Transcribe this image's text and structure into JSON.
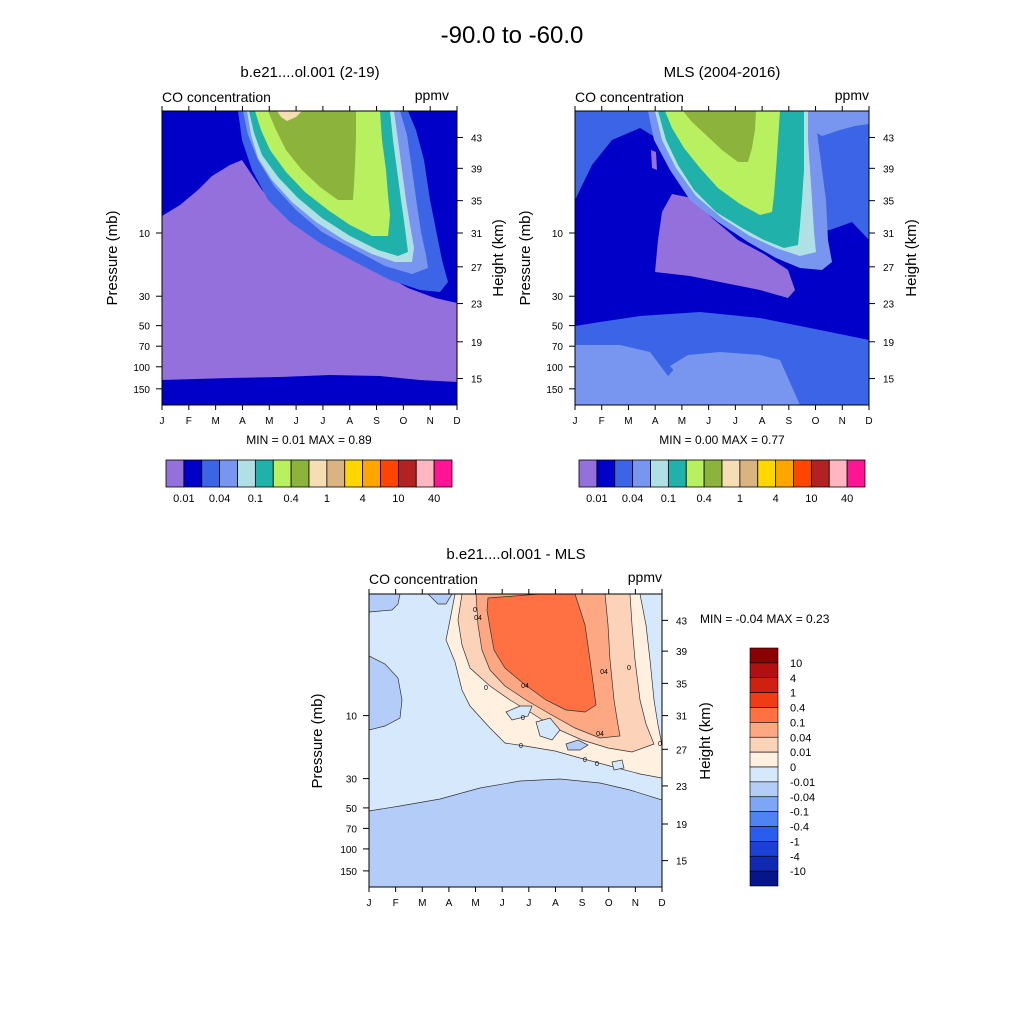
{
  "figure": {
    "title": "-90.0 to -60.0"
  },
  "chart_data": [
    {
      "type": "contour",
      "panel": "model",
      "title": "b.e21....ol.001 (2-19)",
      "left_label": "CO concentration",
      "right_label": "ppmv",
      "ylabel": "Pressure (mb)",
      "y2label": "Height (km)",
      "x_ticks": [
        "J",
        "F",
        "M",
        "A",
        "M",
        "J",
        "J",
        "A",
        "S",
        "O",
        "N",
        "D"
      ],
      "y_ticks": [
        "10",
        "30",
        "50",
        "70",
        "100",
        "150"
      ],
      "y2_ticks": [
        "43",
        "39",
        "35",
        "31",
        "27",
        "23",
        "19",
        "15"
      ],
      "min_max_text": "MIN =   0.01  MAX =   0.89",
      "colorbar": {
        "colors": [
          "#9370db",
          "#0000c8",
          "#3c64e6",
          "#7896f0",
          "#b0e0e6",
          "#20b2aa",
          "#b8f060",
          "#8cb43c",
          "#f5deb3",
          "#d9b480",
          "#ffd700",
          "#ffa500",
          "#ff4500",
          "#b22222",
          "#ffb6c1",
          "#ff1493"
        ],
        "labels": [
          "0.01",
          "0.04",
          "0.1",
          "0.4",
          "1",
          "4",
          "10",
          "40"
        ]
      }
    },
    {
      "type": "contour",
      "panel": "obs",
      "title": "MLS (2004-2016)",
      "left_label": "CO concentration",
      "right_label": "ppmv",
      "ylabel": "Pressure (mb)",
      "y2label": "Height (km)",
      "x_ticks": [
        "J",
        "F",
        "M",
        "A",
        "M",
        "J",
        "J",
        "A",
        "S",
        "O",
        "N",
        "D"
      ],
      "y_ticks": [
        "10",
        "30",
        "50",
        "70",
        "100",
        "150"
      ],
      "y2_ticks": [
        "43",
        "39",
        "35",
        "31",
        "27",
        "23",
        "19",
        "15"
      ],
      "min_max_text": "MIN =   0.00  MAX =   0.77",
      "colorbar": {
        "colors": [
          "#9370db",
          "#0000c8",
          "#3c64e6",
          "#7896f0",
          "#b0e0e6",
          "#20b2aa",
          "#b8f060",
          "#8cb43c",
          "#f5deb3",
          "#d9b480",
          "#ffd700",
          "#ffa500",
          "#ff4500",
          "#b22222",
          "#ffb6c1",
          "#ff1493"
        ],
        "labels": [
          "0.01",
          "0.04",
          "0.1",
          "0.4",
          "1",
          "4",
          "10",
          "40"
        ]
      }
    },
    {
      "type": "contour",
      "panel": "diff",
      "title": "b.e21....ol.001 - MLS",
      "left_label": "CO concentration",
      "right_label": "ppmv",
      "ylabel": "Pressure (mb)",
      "y2label": "Height (km)",
      "x_ticks": [
        "J",
        "F",
        "M",
        "A",
        "M",
        "J",
        "J",
        "A",
        "S",
        "O",
        "N",
        "D"
      ],
      "y_ticks": [
        "10",
        "30",
        "50",
        "70",
        "100",
        "150"
      ],
      "y2_ticks": [
        "43",
        "39",
        "35",
        "31",
        "27",
        "23",
        "19",
        "15"
      ],
      "min_max_text": "MIN =  -0.04  MAX =   0.23",
      "contour_labels": [
        "0",
        "0",
        "0",
        "0",
        "0",
        "0",
        "0",
        "0",
        "04",
        "04",
        "04",
        "04"
      ],
      "colorbar": {
        "colors": [
          "#8b0000",
          "#b01010",
          "#d02010",
          "#f03c14",
          "#ff7043",
          "#fda882",
          "#fcd2b8",
          "#fff0e0",
          "#d6e8fb",
          "#b3ccf8",
          "#7da7f5",
          "#4f83f2",
          "#2a5ded",
          "#1b40d4",
          "#0f2ab0",
          "#06158a"
        ],
        "labels": [
          "10",
          "4",
          "1",
          "0.4",
          "0.1",
          "0.04",
          "0.01",
          "0",
          "-0.01",
          "-0.04",
          "-0.1",
          "-0.4",
          "-1",
          "-4",
          "-10"
        ]
      }
    }
  ]
}
